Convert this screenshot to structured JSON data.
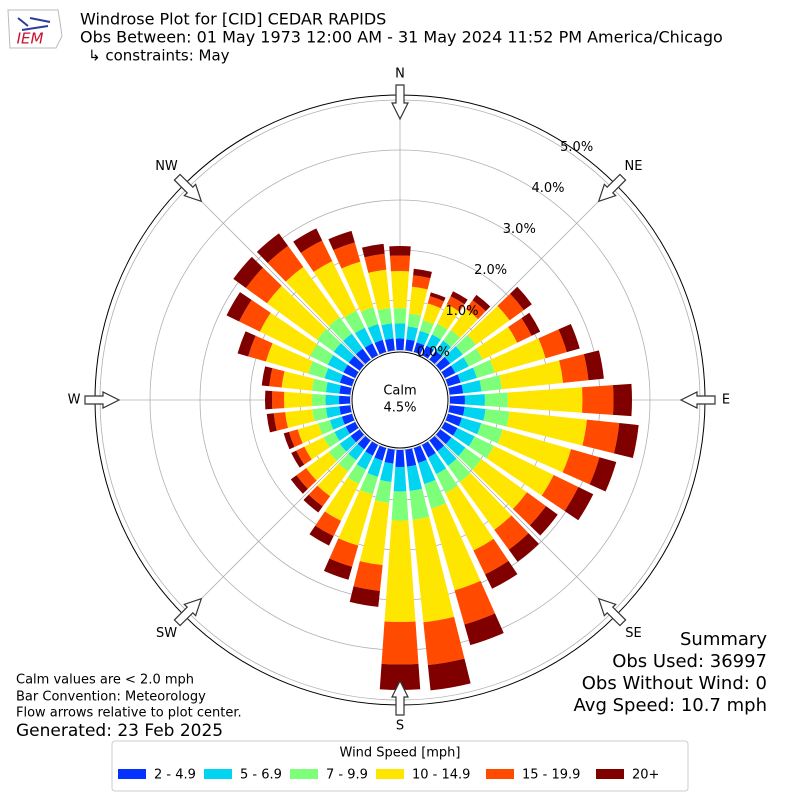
{
  "logo": "IEM",
  "chart_data": {
    "type": "windrose",
    "title_lines": [
      "Windrose Plot for [CID] CEDAR RAPIDS",
      "Obs Between: 01 May 1973 12:00 AM - 31 May 2024 11:52 PM America/Chicago",
      "↳ constraints: May"
    ],
    "x": [
      0,
      10,
      20,
      30,
      40,
      50,
      60,
      70,
      80,
      90,
      100,
      110,
      120,
      130,
      140,
      150,
      160,
      170,
      180,
      190,
      200,
      210,
      220,
      230,
      240,
      250,
      260,
      270,
      280,
      290,
      300,
      310,
      320,
      330,
      340,
      350
    ],
    "xticks": [
      {
        "value": 0,
        "label": "N"
      },
      {
        "value": 45,
        "label": "NE"
      },
      {
        "value": 90,
        "label": "E"
      },
      {
        "value": 135,
        "label": "SE"
      },
      {
        "value": 180,
        "label": "S"
      },
      {
        "value": 225,
        "label": "SW"
      },
      {
        "value": 270,
        "label": "W"
      },
      {
        "value": 315,
        "label": "NW"
      }
    ],
    "ylim": [
      0,
      5.1
    ],
    "yticks": [
      {
        "value": 0,
        "label": "0.0%"
      },
      {
        "value": 1,
        "label": "1.0%"
      },
      {
        "value": 2,
        "label": "2.0%"
      },
      {
        "value": 3,
        "label": "3.0%"
      },
      {
        "value": 4,
        "label": "4.0%"
      },
      {
        "value": 5,
        "label": "5.0%"
      }
    ],
    "grid": true,
    "calm": {
      "label": "Calm",
      "value": 4.5,
      "value_label": "4.5%"
    },
    "legend_title": "Wind Speed [mph]",
    "series": [
      {
        "name": "2 - 4.9",
        "color": "#0433ff",
        "values": [
          0.23,
          0.22,
          0.2,
          0.21,
          0.21,
          0.24,
          0.23,
          0.26,
          0.27,
          0.3,
          0.3,
          0.29,
          0.28,
          0.27,
          0.27,
          0.28,
          0.31,
          0.34,
          0.34,
          0.28,
          0.26,
          0.24,
          0.22,
          0.22,
          0.21,
          0.21,
          0.22,
          0.22,
          0.22,
          0.25,
          0.26,
          0.27,
          0.27,
          0.26,
          0.25,
          0.24
        ]
      },
      {
        "name": "5 - 6.9",
        "color": "#00d4f0",
        "values": [
          0.3,
          0.26,
          0.24,
          0.25,
          0.26,
          0.31,
          0.3,
          0.34,
          0.37,
          0.4,
          0.42,
          0.4,
          0.38,
          0.35,
          0.36,
          0.37,
          0.44,
          0.49,
          0.49,
          0.37,
          0.34,
          0.31,
          0.27,
          0.27,
          0.25,
          0.25,
          0.27,
          0.27,
          0.27,
          0.32,
          0.35,
          0.37,
          0.37,
          0.35,
          0.33,
          0.3
        ]
      },
      {
        "name": "7 - 9.9",
        "color": "#7dff7a",
        "values": [
          0.31,
          0.26,
          0.22,
          0.24,
          0.26,
          0.33,
          0.31,
          0.37,
          0.41,
          0.46,
          0.48,
          0.45,
          0.43,
          0.39,
          0.4,
          0.42,
          0.51,
          0.58,
          0.58,
          0.42,
          0.37,
          0.32,
          0.28,
          0.27,
          0.24,
          0.24,
          0.27,
          0.27,
          0.28,
          0.34,
          0.39,
          0.41,
          0.41,
          0.38,
          0.35,
          0.31
        ]
      },
      {
        "name": "10 - 14.9",
        "color": "#ffe600",
        "values": [
          0.74,
          0.54,
          0.35,
          0.43,
          0.52,
          0.83,
          0.77,
          1.06,
          1.23,
          1.49,
          1.56,
          1.42,
          1.33,
          1.13,
          1.18,
          1.28,
          1.7,
          2.06,
          2.03,
          1.25,
          1.06,
          0.82,
          0.61,
          0.56,
          0.43,
          0.43,
          0.55,
          0.56,
          0.61,
          0.88,
          1.12,
          1.24,
          1.24,
          1.1,
          0.95,
          0.77
        ]
      },
      {
        "name": "15 - 19.9",
        "color": "#ff4a00",
        "values": [
          0.31,
          0.23,
          0.15,
          0.18,
          0.22,
          0.35,
          0.32,
          0.44,
          0.51,
          0.62,
          0.65,
          0.59,
          0.55,
          0.47,
          0.49,
          0.53,
          0.71,
          0.86,
          0.85,
          0.52,
          0.44,
          0.34,
          0.25,
          0.24,
          0.18,
          0.18,
          0.23,
          0.24,
          0.25,
          0.37,
          0.46,
          0.52,
          0.52,
          0.46,
          0.4,
          0.32
        ]
      },
      {
        "name": "20+",
        "color": "#800000",
        "values": [
          0.19,
          0.13,
          0.08,
          0.11,
          0.13,
          0.2,
          0.19,
          0.27,
          0.31,
          0.37,
          0.39,
          0.35,
          0.33,
          0.29,
          0.3,
          0.32,
          0.43,
          0.51,
          0.51,
          0.32,
          0.27,
          0.21,
          0.15,
          0.14,
          0.11,
          0.11,
          0.14,
          0.14,
          0.15,
          0.22,
          0.28,
          0.31,
          0.31,
          0.27,
          0.24,
          0.2
        ]
      }
    ],
    "notes": [
      "Calm values are < 2.0 mph",
      "Bar Convention: Meteorology",
      "Flow arrows relative to plot center."
    ],
    "generated": "Generated: 23 Feb 2025",
    "summary": [
      "Summary",
      "Obs Used: 36997",
      "Obs Without Wind: 0",
      "Avg Speed: 10.7 mph"
    ]
  }
}
